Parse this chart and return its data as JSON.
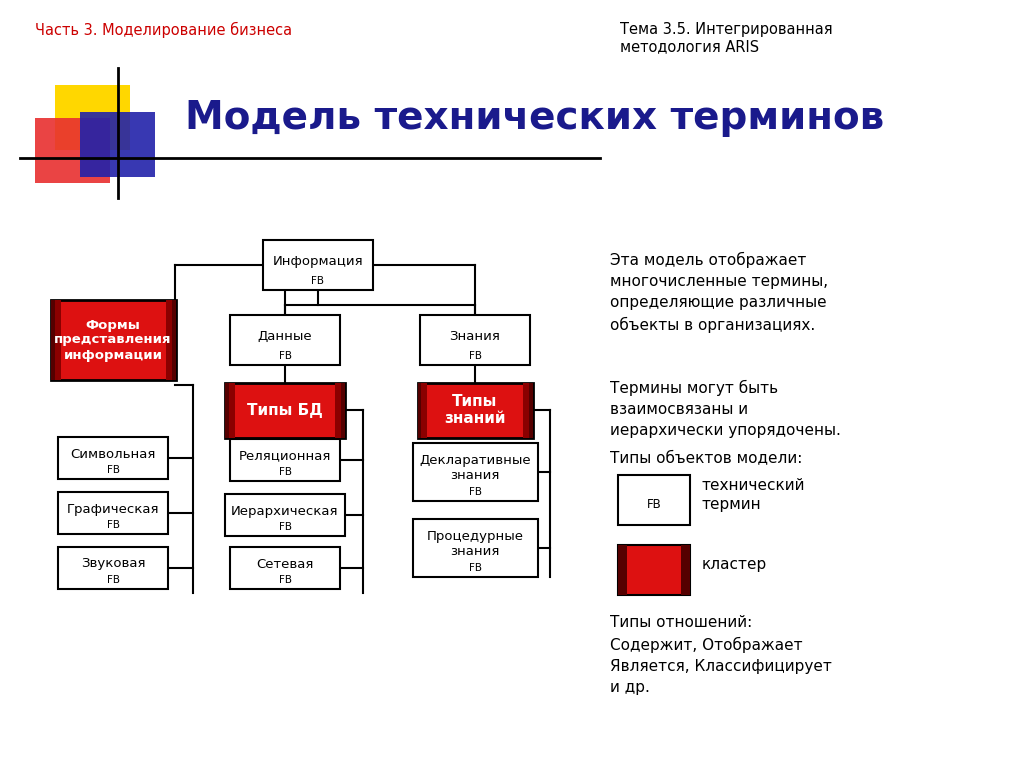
{
  "bg_color": "#ffffff",
  "top_left_text": "Часть 3. Моделирование бизнеса",
  "top_right_text": "Тема 3.5. Интегрированная\nметодология ARIS",
  "title": "Модель технических терминов",
  "title_color": "#1a1a8c",
  "header_color": "#cc0000",
  "right_text1": "Эта модель отображает\nмногочисленные термины,\nопределяющие различные\nобъекты в организациях.",
  "right_text2": "Термины могут быть\nвзаимосвязаны и\nиерархически упорядочены.",
  "right_text3": "Типы объектов модели:",
  "right_text4": "технический\nтермин",
  "right_text5": "кластер",
  "right_text6": "Типы отношений:\nСодержит, Отображает\nЯвляется, Классифицирует\nи др."
}
